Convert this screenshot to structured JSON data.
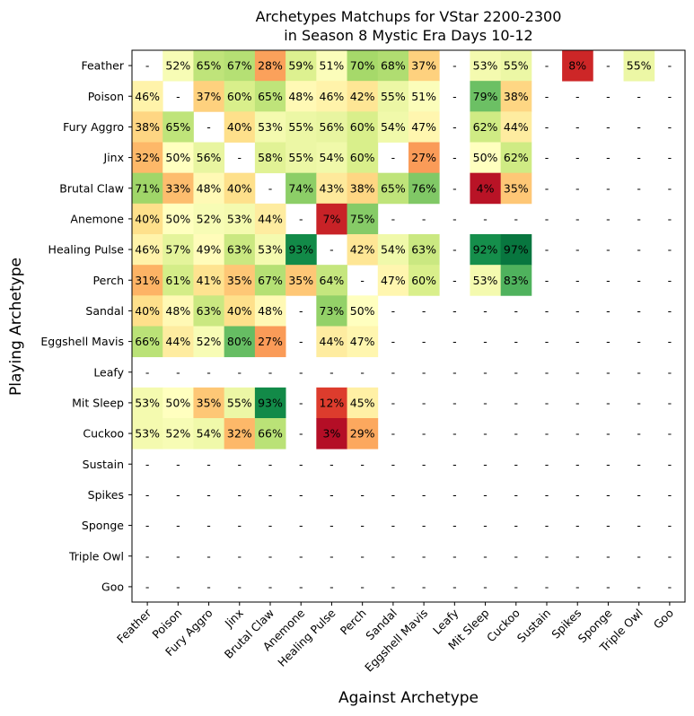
{
  "chart_data": {
    "type": "heatmap",
    "title": "Archetypes Matchups for VStar 2200-2300\nin Season 8 Mystic Era Days 10-12",
    "xlabel": "Against Archetype",
    "ylabel": "Playing Archetype",
    "x_categories": [
      "Feather",
      "Poison",
      "Fury Aggro",
      "Jinx",
      "Brutal Claw",
      "Anemone",
      "Healing Pulse",
      "Perch",
      "Sandal",
      "Eggshell Mavis",
      "Leafy",
      "Mit Sleep",
      "Cuckoo",
      "Sustain",
      "Spikes",
      "Sponge",
      "Triple Owl",
      "Goo"
    ],
    "y_categories": [
      "Feather",
      "Poison",
      "Fury Aggro",
      "Jinx",
      "Brutal Claw",
      "Anemone",
      "Healing Pulse",
      "Perch",
      "Sandal",
      "Eggshell Mavis",
      "Leafy",
      "Mit Sleep",
      "Cuckoo",
      "Sustain",
      "Spikes",
      "Sponge",
      "Triple Owl",
      "Goo"
    ],
    "colormap": "RdYlGn",
    "value_range": [
      0,
      100
    ],
    "missing_label": "-",
    "values": [
      [
        null,
        52,
        65,
        67,
        28,
        59,
        51,
        70,
        68,
        37,
        null,
        53,
        55,
        null,
        8,
        null,
        55,
        null
      ],
      [
        46,
        null,
        37,
        60,
        65,
        48,
        46,
        42,
        55,
        51,
        null,
        79,
        38,
        null,
        null,
        null,
        null,
        null
      ],
      [
        38,
        65,
        null,
        40,
        53,
        55,
        56,
        60,
        54,
        47,
        null,
        62,
        44,
        null,
        null,
        null,
        null,
        null
      ],
      [
        32,
        50,
        56,
        null,
        58,
        55,
        54,
        60,
        null,
        27,
        null,
        50,
        62,
        null,
        null,
        null,
        null,
        null
      ],
      [
        71,
        33,
        48,
        40,
        null,
        74,
        43,
        38,
        65,
        76,
        null,
        4,
        35,
        null,
        null,
        null,
        null,
        null
      ],
      [
        40,
        50,
        52,
        53,
        44,
        null,
        7,
        75,
        null,
        null,
        null,
        null,
        null,
        null,
        null,
        null,
        null,
        null
      ],
      [
        46,
        57,
        49,
        63,
        53,
        93,
        null,
        42,
        54,
        63,
        null,
        92,
        97,
        null,
        null,
        null,
        null,
        null
      ],
      [
        31,
        61,
        41,
        35,
        67,
        35,
        64,
        null,
        47,
        60,
        null,
        53,
        83,
        null,
        null,
        null,
        null,
        null
      ],
      [
        40,
        48,
        63,
        40,
        48,
        null,
        73,
        50,
        null,
        null,
        null,
        null,
        null,
        null,
        null,
        null,
        null,
        null
      ],
      [
        66,
        44,
        52,
        80,
        27,
        null,
        44,
        47,
        null,
        null,
        null,
        null,
        null,
        null,
        null,
        null,
        null,
        null
      ],
      [
        null,
        null,
        null,
        null,
        null,
        null,
        null,
        null,
        null,
        null,
        null,
        null,
        null,
        null,
        null,
        null,
        null,
        null
      ],
      [
        53,
        50,
        35,
        55,
        93,
        null,
        12,
        45,
        null,
        null,
        null,
        null,
        null,
        null,
        null,
        null,
        null,
        null
      ],
      [
        53,
        52,
        54,
        32,
        66,
        null,
        3,
        29,
        null,
        null,
        null,
        null,
        null,
        null,
        null,
        null,
        null,
        null
      ],
      [
        null,
        null,
        null,
        null,
        null,
        null,
        null,
        null,
        null,
        null,
        null,
        null,
        null,
        null,
        null,
        null,
        null,
        null
      ],
      [
        null,
        null,
        null,
        null,
        null,
        null,
        null,
        null,
        null,
        null,
        null,
        null,
        null,
        null,
        null,
        null,
        null,
        null
      ],
      [
        null,
        null,
        null,
        null,
        null,
        null,
        null,
        null,
        null,
        null,
        null,
        null,
        null,
        null,
        null,
        null,
        null,
        null
      ],
      [
        null,
        null,
        null,
        null,
        null,
        null,
        null,
        null,
        null,
        null,
        null,
        null,
        null,
        null,
        null,
        null,
        null,
        null
      ],
      [
        null,
        null,
        null,
        null,
        null,
        null,
        null,
        null,
        null,
        null,
        null,
        null,
        null,
        null,
        null,
        null,
        null,
        null
      ]
    ]
  }
}
